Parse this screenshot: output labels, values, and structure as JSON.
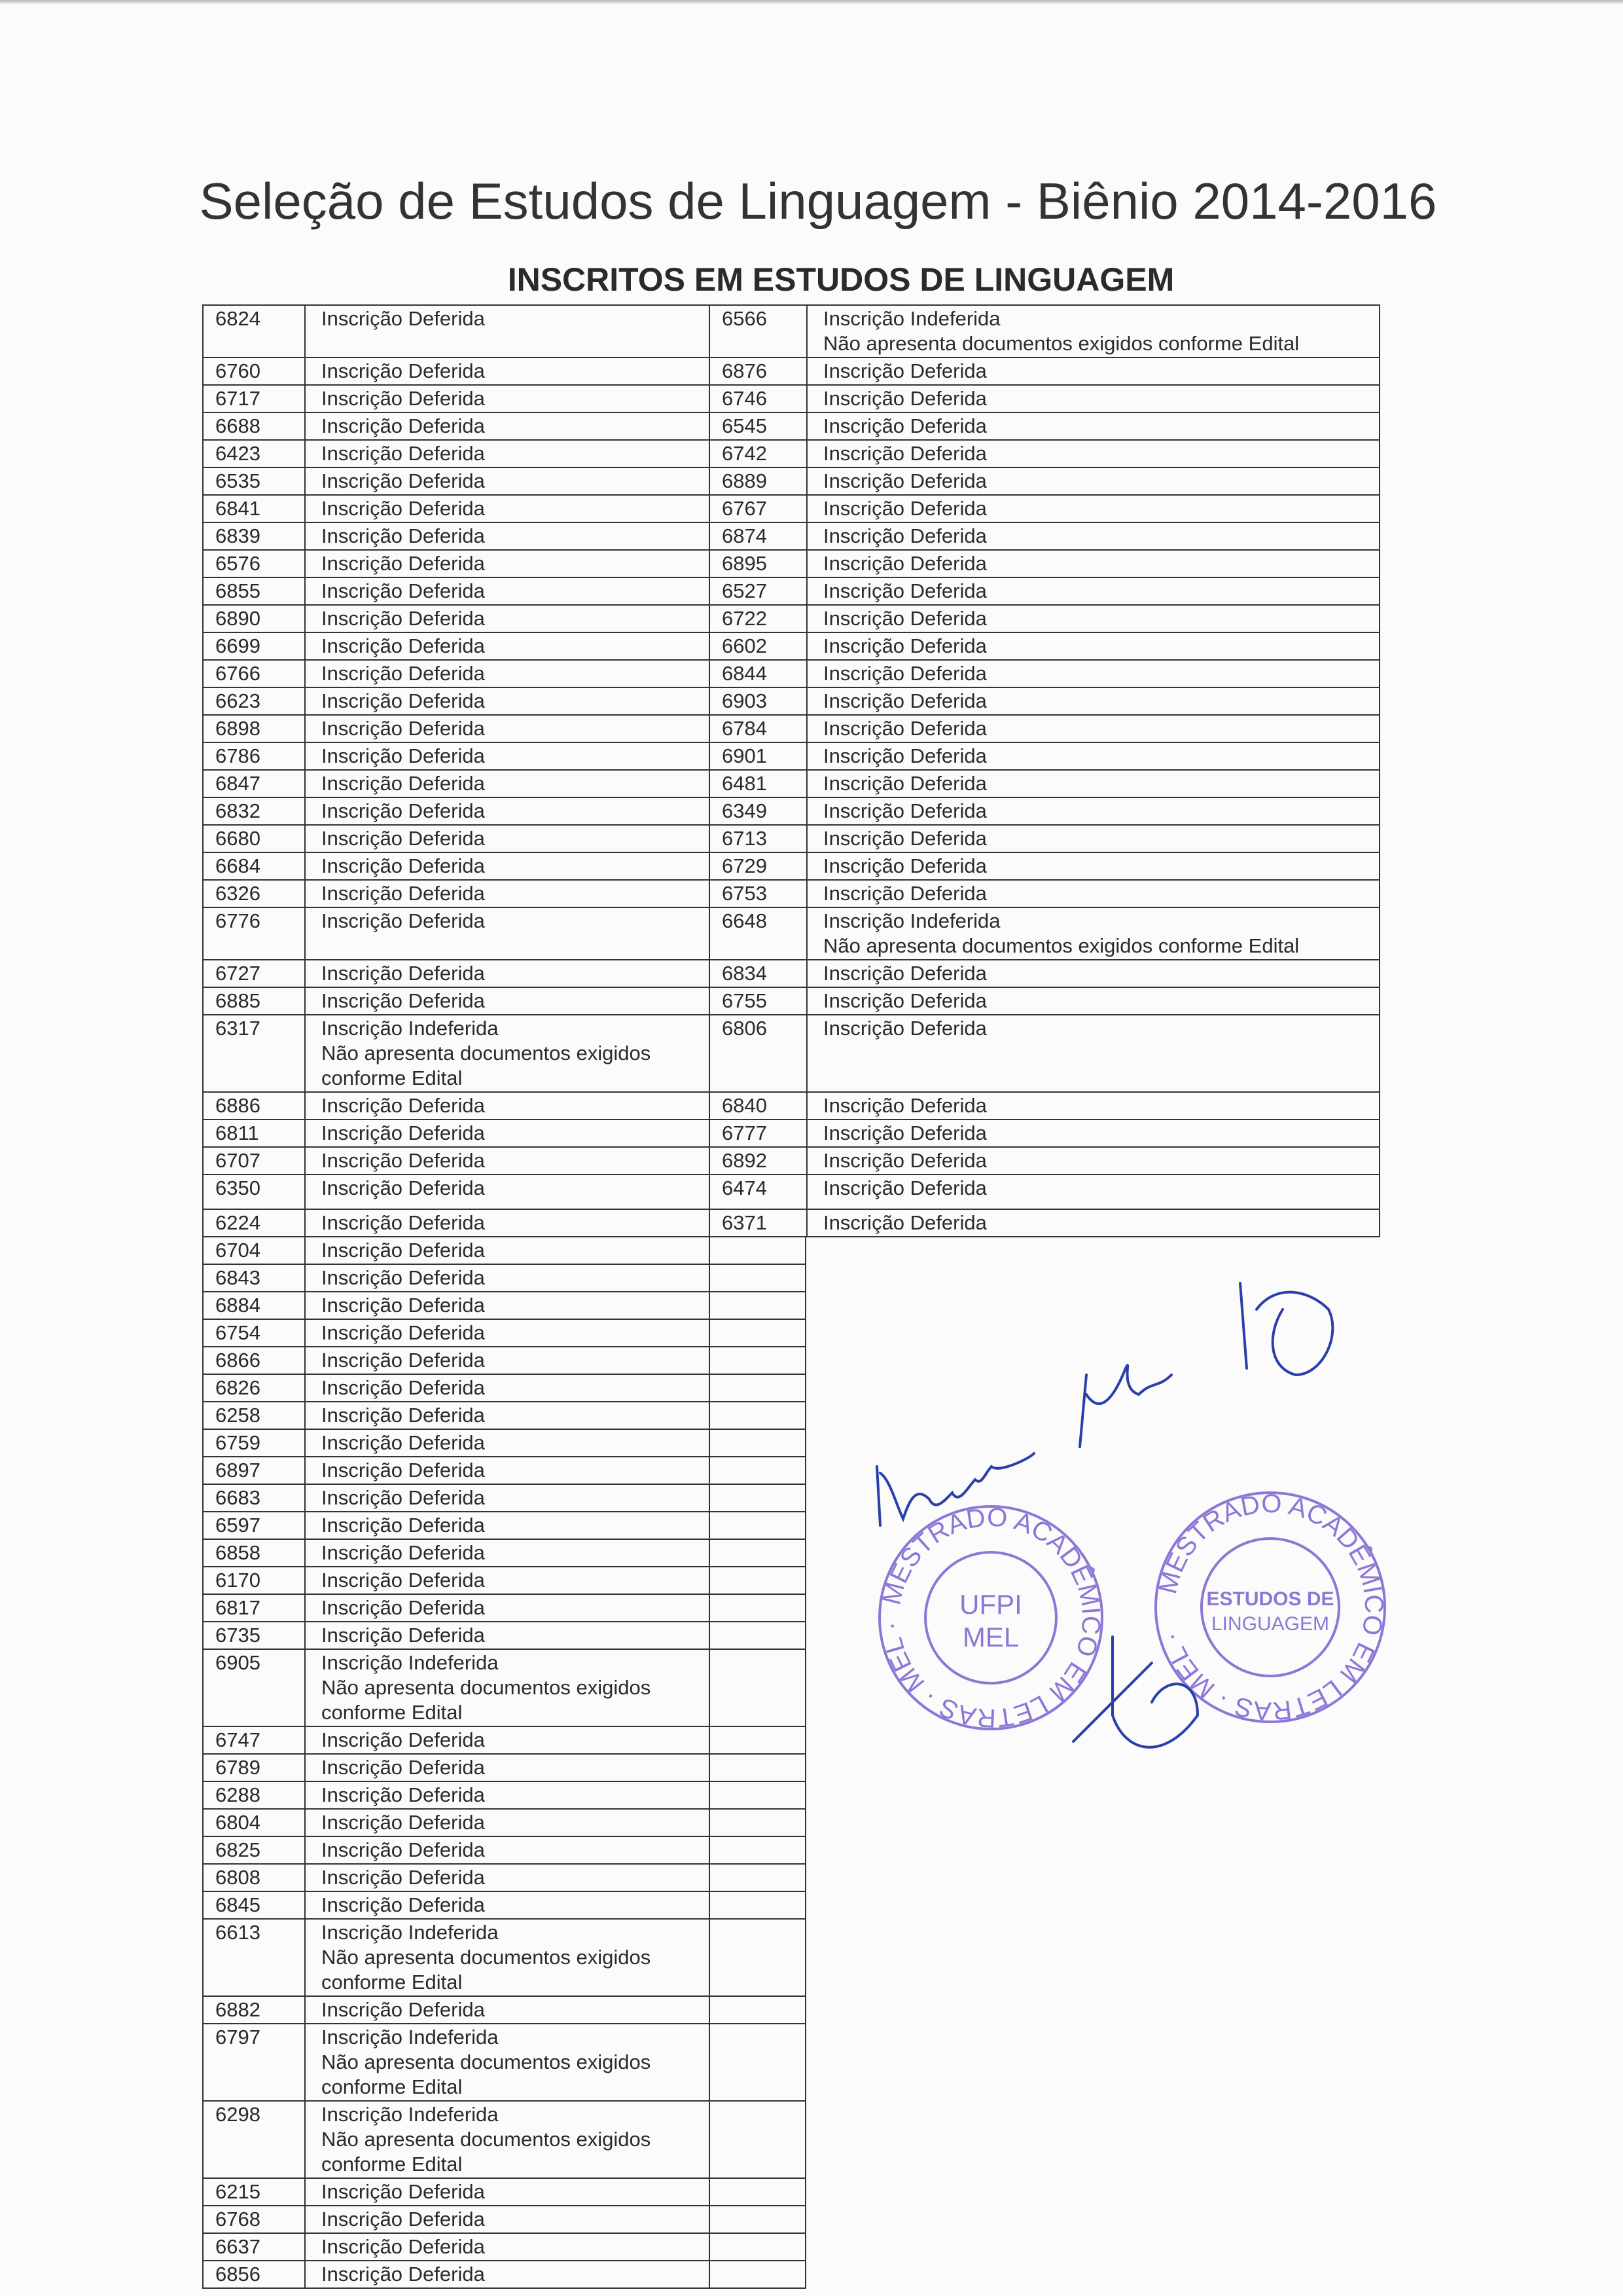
{
  "title": "Seleção de Estudos de Linguagem - Biênio 2014-2016",
  "subtitle": "INSCRITOS EM ESTUDOS DE LINGUAGEM",
  "paired_rows": [
    {
      "left": {
        "id": "6824",
        "status": "Inscrição Deferida"
      },
      "right": {
        "id": "6566",
        "status": "Inscrição Indeferida",
        "note": "Não apresenta documentos exigidos conforme Edital"
      }
    },
    {
      "left": {
        "id": "6760",
        "status": "Inscrição Deferida"
      },
      "right": {
        "id": "6876",
        "status": "Inscrição Deferida"
      }
    },
    {
      "left": {
        "id": "6717",
        "status": "Inscrição Deferida"
      },
      "right": {
        "id": "6746",
        "status": "Inscrição Deferida"
      }
    },
    {
      "left": {
        "id": "6688",
        "status": "Inscrição Deferida"
      },
      "right": {
        "id": "6545",
        "status": "Inscrição Deferida"
      }
    },
    {
      "left": {
        "id": "6423",
        "status": "Inscrição Deferida"
      },
      "right": {
        "id": "6742",
        "status": "Inscrição Deferida"
      }
    },
    {
      "left": {
        "id": "6535",
        "status": "Inscrição Deferida"
      },
      "right": {
        "id": "6889",
        "status": "Inscrição Deferida"
      }
    },
    {
      "left": {
        "id": "6841",
        "status": "Inscrição Deferida"
      },
      "right": {
        "id": "6767",
        "status": "Inscrição Deferida"
      }
    },
    {
      "left": {
        "id": "6839",
        "status": "Inscrição Deferida"
      },
      "right": {
        "id": "6874",
        "status": "Inscrição Deferida"
      }
    },
    {
      "left": {
        "id": "6576",
        "status": "Inscrição Deferida"
      },
      "right": {
        "id": "6895",
        "status": "Inscrição Deferida"
      }
    },
    {
      "left": {
        "id": "6855",
        "status": "Inscrição Deferida"
      },
      "right": {
        "id": "6527",
        "status": "Inscrição Deferida"
      }
    },
    {
      "left": {
        "id": "6890",
        "status": "Inscrição Deferida"
      },
      "right": {
        "id": "6722",
        "status": "Inscrição Deferida"
      }
    },
    {
      "left": {
        "id": "6699",
        "status": "Inscrição Deferida"
      },
      "right": {
        "id": "6602",
        "status": "Inscrição Deferida"
      }
    },
    {
      "left": {
        "id": "6766",
        "status": "Inscrição Deferida"
      },
      "right": {
        "id": "6844",
        "status": "Inscrição Deferida"
      }
    },
    {
      "left": {
        "id": "6623",
        "status": "Inscrição Deferida"
      },
      "right": {
        "id": "6903",
        "status": "Inscrição Deferida"
      }
    },
    {
      "left": {
        "id": "6898",
        "status": "Inscrição Deferida"
      },
      "right": {
        "id": "6784",
        "status": "Inscrição Deferida"
      }
    },
    {
      "left": {
        "id": "6786",
        "status": "Inscrição Deferida"
      },
      "right": {
        "id": "6901",
        "status": "Inscrição Deferida"
      }
    },
    {
      "left": {
        "id": "6847",
        "status": "Inscrição Deferida"
      },
      "right": {
        "id": "6481",
        "status": "Inscrição Deferida"
      }
    },
    {
      "left": {
        "id": "6832",
        "status": "Inscrição Deferida"
      },
      "right": {
        "id": "6349",
        "status": "Inscrição Deferida"
      }
    },
    {
      "left": {
        "id": "6680",
        "status": "Inscrição Deferida"
      },
      "right": {
        "id": "6713",
        "status": "Inscrição Deferida"
      }
    },
    {
      "left": {
        "id": "6684",
        "status": "Inscrição Deferida"
      },
      "right": {
        "id": "6729",
        "status": "Inscrição Deferida"
      }
    },
    {
      "left": {
        "id": "6326",
        "status": "Inscrição Deferida"
      },
      "right": {
        "id": "6753",
        "status": "Inscrição Deferida"
      }
    },
    {
      "left": {
        "id": "6776",
        "status": "Inscrição Deferida"
      },
      "right": {
        "id": "6648",
        "status": "Inscrição Indeferida",
        "note": "Não apresenta documentos exigidos conforme Edital"
      }
    },
    {
      "left": {
        "id": "6727",
        "status": "Inscrição Deferida"
      },
      "right": {
        "id": "6834",
        "status": "Inscrição Deferida"
      }
    },
    {
      "left": {
        "id": "6885",
        "status": "Inscrição Deferida"
      },
      "right": {
        "id": "6755",
        "status": "Inscrição Deferida"
      }
    },
    {
      "left": {
        "id": "6317",
        "status": "Inscrição Indeferida",
        "note": "Não apresenta documentos exigidos conforme Edital"
      },
      "right": {
        "id": "6806",
        "status": "Inscrição Deferida"
      }
    },
    {
      "left": {
        "id": "6886",
        "status": "Inscrição Deferida"
      },
      "right": {
        "id": "6840",
        "status": "Inscrição Deferida"
      }
    },
    {
      "left": {
        "id": "6811",
        "status": "Inscrição Deferida"
      },
      "right": {
        "id": "6777",
        "status": "Inscrição Deferida"
      }
    },
    {
      "left": {
        "id": "6707",
        "status": "Inscrição Deferida"
      },
      "right": {
        "id": "6892",
        "status": "Inscrição Deferida"
      }
    },
    {
      "left": {
        "id": "6350",
        "status": "Inscrição Deferida"
      },
      "right": {
        "id": "6474",
        "status": "Inscrição Deferida"
      }
    },
    {
      "left": {
        "id": "6224",
        "status": "Inscrição Deferida"
      },
      "right": {
        "id": "6371",
        "status": "Inscrição Deferida"
      }
    }
  ],
  "left_only_rows": [
    {
      "id": "6704",
      "status": "Inscrição Deferida"
    },
    {
      "id": "6843",
      "status": "Inscrição Deferida"
    },
    {
      "id": "6884",
      "status": "Inscrição Deferida"
    },
    {
      "id": "6754",
      "status": "Inscrição Deferida"
    },
    {
      "id": "6866",
      "status": "Inscrição Deferida"
    },
    {
      "id": "6826",
      "status": "Inscrição Deferida"
    },
    {
      "id": "6258",
      "status": "Inscrição Deferida"
    },
    {
      "id": "6759",
      "status": "Inscrição Deferida"
    },
    {
      "id": "6897",
      "status": "Inscrição Deferida"
    },
    {
      "id": "6683",
      "status": "Inscrição Deferida"
    },
    {
      "id": "6597",
      "status": "Inscrição Deferida"
    },
    {
      "id": "6858",
      "status": "Inscrição Deferida"
    },
    {
      "id": "6170",
      "status": "Inscrição Deferida"
    },
    {
      "id": "6817",
      "status": "Inscrição Deferida"
    },
    {
      "id": "6735",
      "status": "Inscrição Deferida"
    },
    {
      "id": "6905",
      "status": "Inscrição Indeferida",
      "note": "Não apresenta documentos exigidos conforme Edital"
    },
    {
      "id": "6747",
      "status": "Inscrição Deferida"
    },
    {
      "id": "6789",
      "status": "Inscrição Deferida"
    },
    {
      "id": "6288",
      "status": "Inscrição Deferida"
    },
    {
      "id": "6804",
      "status": "Inscrição Deferida"
    },
    {
      "id": "6825",
      "status": "Inscrição Deferida"
    },
    {
      "id": "6808",
      "status": "Inscrição Deferida"
    },
    {
      "id": "6845",
      "status": "Inscrição Deferida"
    },
    {
      "id": "6613",
      "status": "Inscrição Indeferida",
      "note": "Não apresenta documentos exigidos conforme Edital"
    },
    {
      "id": "6882",
      "status": "Inscrição Deferida"
    },
    {
      "id": "6797",
      "status": "Inscrição Indeferida",
      "note": "Não apresenta documentos exigidos conforme Edital"
    },
    {
      "id": "6298",
      "status": "Inscrição Indeferida",
      "note": "Não apresenta documentos exigidos conforme Edital"
    },
    {
      "id": "6215",
      "status": "Inscrição Deferida"
    },
    {
      "id": "6768",
      "status": "Inscrição Deferida"
    },
    {
      "id": "6637",
      "status": "Inscrição Deferida"
    },
    {
      "id": "6856",
      "status": "Inscrição Deferida"
    }
  ],
  "stamps": [
    {
      "ring": "MESTRADO ACADÊMICO EM LETRAS · MEL ·",
      "center_1": "UFPI",
      "center_2": "MEL"
    },
    {
      "ring": "MESTRADO ACADÊMICO EM LETRAS · MEL ·",
      "center_1": "ESTUDOS DE",
      "center_2": "LINGUAGEM"
    }
  ],
  "stamp_color": "#7a5fd0",
  "ink_color": "#2b3fa8"
}
